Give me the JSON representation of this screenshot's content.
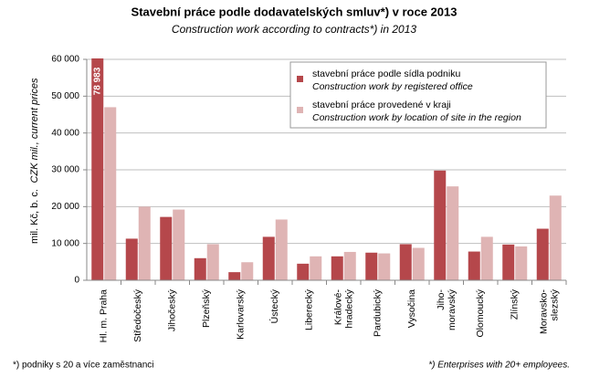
{
  "chart_data": {
    "type": "bar",
    "title": "Stavební práce podle dodavatelských smluv*) v roce 2013",
    "subtitle": "Construction work according to contracts*) in 2013",
    "y_label": "mil. Kč, b. c.",
    "y_label_en": "CZK mil., current prices",
    "categories": [
      "Hl. m. Praha",
      "Středočeský",
      "Jihočeský",
      "Plzeňský",
      "Karlovarský",
      "Ústecký",
      "Liberecký",
      "Králové-hradecký",
      "Pardubický",
      "Vysočina",
      "Jiho-moravský",
      "Olomoucký",
      "Zlínský",
      "Moravsko-slezský"
    ],
    "series": [
      {
        "name": "stavební práce podle sídla podniku",
        "name_en": "Construction work by registered office",
        "color": "#b5474b",
        "values": [
          78983,
          11300,
          17200,
          6000,
          2200,
          11800,
          4500,
          6500,
          7500,
          9800,
          29800,
          7800,
          9700,
          14000
        ],
        "value_labels": [
          "78 983",
          null,
          null,
          null,
          null,
          null,
          null,
          null,
          null,
          null,
          null,
          null,
          null,
          null
        ]
      },
      {
        "name": "stavební práce provedené v kraji",
        "name_en": "Construction work by location of site in the region",
        "color": "#dfb4b4",
        "values": [
          47000,
          20000,
          19200,
          9800,
          4900,
          16500,
          6500,
          7700,
          7300,
          8800,
          25500,
          11800,
          9200,
          23000
        ]
      }
    ],
    "ylim": [
      0,
      60000
    ],
    "yticks": [
      0,
      {
        "value": 10000,
        "label": "10 000"
      },
      {
        "value": 20000,
        "label": "20 000"
      },
      {
        "value": 30000,
        "label": "30 000"
      },
      {
        "value": 40000,
        "label": "40 000"
      },
      {
        "value": 50000,
        "label": "50 000"
      },
      {
        "value": 60000,
        "label": "60 000"
      }
    ],
    "grid": true,
    "footnote_left": "*) podniky s 20 a více zaměstnanci",
    "footnote_right": "*) Enterprises with 20+ employees."
  }
}
